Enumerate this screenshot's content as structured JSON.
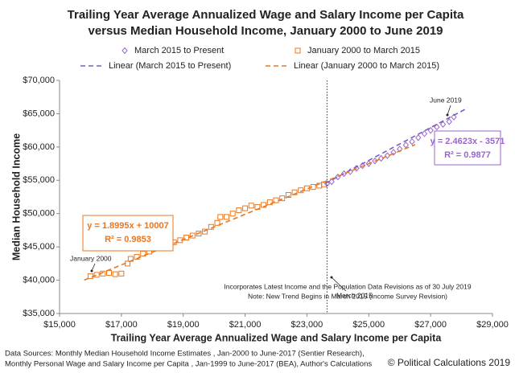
{
  "chart_data": {
    "type": "scatter",
    "title": [
      "Trailing Year Average Annualized Wage and Salary Income per Capita",
      "versus Median Household Income, January 2000 to June 2019"
    ],
    "x_label": "Trailing Year Average Annualized Wage and Salary Income per Capita",
    "y_label": "Median Household Income",
    "xlim": [
      15000,
      29000
    ],
    "ylim": [
      35000,
      70000
    ],
    "xticks": [
      {
        "value": 15000,
        "label": "$15,000"
      },
      {
        "value": 17000,
        "label": "$17,000"
      },
      {
        "value": 19000,
        "label": "$19,000"
      },
      {
        "value": 21000,
        "label": "$21,000"
      },
      {
        "value": 23000,
        "label": "$23,000"
      },
      {
        "value": 25000,
        "label": "$25,000"
      },
      {
        "value": 27000,
        "label": "$27,000"
      },
      {
        "value": 29000,
        "label": "$29,000"
      }
    ],
    "yticks": [
      {
        "value": 35000,
        "label": "$35,000"
      },
      {
        "value": 40000,
        "label": "$40,000"
      },
      {
        "value": 45000,
        "label": "$45,000"
      },
      {
        "value": 50000,
        "label": "$50,000"
      },
      {
        "value": 55000,
        "label": "$55,000"
      },
      {
        "value": 60000,
        "label": "$60,000"
      },
      {
        "value": 65000,
        "label": "$65,000"
      },
      {
        "value": 70000,
        "label": "$70,000"
      }
    ],
    "grid": false,
    "series": [
      {
        "name": "March 2015 to Present",
        "color": "#9966cc",
        "marker": "diamond",
        "x": [
          23650,
          23800,
          24000,
          24200,
          24400,
          24600,
          24800,
          25000,
          25200,
          25400,
          25600,
          25800,
          26000,
          26200,
          26400,
          26600,
          26800,
          27000,
          27200,
          27400,
          27600,
          27750
        ],
        "y": [
          54500,
          54800,
          55500,
          56000,
          56300,
          56800,
          57200,
          57500,
          57900,
          58300,
          58700,
          59200,
          59700,
          60300,
          60800,
          61400,
          62000,
          62500,
          63000,
          63400,
          63800,
          64500
        ]
      },
      {
        "name": "January 2000 to March 2015",
        "color": "#e87722",
        "marker": "square",
        "x": [
          16000,
          16200,
          16400,
          16600,
          16800,
          17000,
          17200,
          17300,
          17500,
          17700,
          17900,
          18100,
          18300,
          18500,
          18700,
          18900,
          19100,
          19300,
          19500,
          19700,
          19900,
          20100,
          20200,
          20400,
          20600,
          20800,
          21000,
          21200,
          21400,
          21600,
          21800,
          22000,
          22200,
          22400,
          22600,
          22800,
          23000,
          23200,
          23400,
          23550
        ],
        "y": [
          40600,
          40800,
          41000,
          41100,
          40900,
          41000,
          42500,
          43200,
          43500,
          44000,
          44300,
          44800,
          45200,
          45500,
          45700,
          46000,
          46400,
          46700,
          47000,
          47300,
          48000,
          48600,
          49500,
          49500,
          50000,
          50500,
          50800,
          51200,
          51000,
          51300,
          51700,
          52000,
          52300,
          52800,
          53200,
          53500,
          53800,
          54000,
          54200,
          54400
        ]
      },
      {
        "name": "Linear (March 2015 to Present)",
        "color": "#7b5cc7",
        "style": "dashed",
        "x": [
          23600,
          28200
        ],
        "y": [
          54539,
          65866
        ]
      },
      {
        "name": "Linear (January 2000 to March 2015)",
        "color": "#e87722",
        "style": "dashed",
        "x": [
          15800,
          26500
        ],
        "y": [
          40019,
          60344
        ]
      }
    ],
    "reference_line": {
      "x": 23650
    },
    "trend_labels": [
      {
        "equation": "y = 1.8995x + 10007",
        "r2": "R² = 0.9853",
        "color": "#e87722"
      },
      {
        "equation": "y = 2.4623x - 3571",
        "r2": "R² = 0.9877",
        "color": "#9966cc"
      }
    ],
    "annotations": [
      "January 2000",
      "March 2015",
      "June 2019"
    ],
    "notes": [
      "Incorporates Latest Income and the Population Data Revisions as of 30 July 2019",
      "Note:  New Trend Begins in March 2015 (Income Survey Revision)"
    ],
    "sources": [
      "Data Sources: Monthly Median Household Income Estimates , Jan-2000 to June-2017 (Sentier Research),",
      "Monthly Personal Wage and Salary Income per Capita , Jan-1999 to June-2017 (BEA), Author's Calculations"
    ],
    "copyright": "© Political Calculations 2019"
  }
}
